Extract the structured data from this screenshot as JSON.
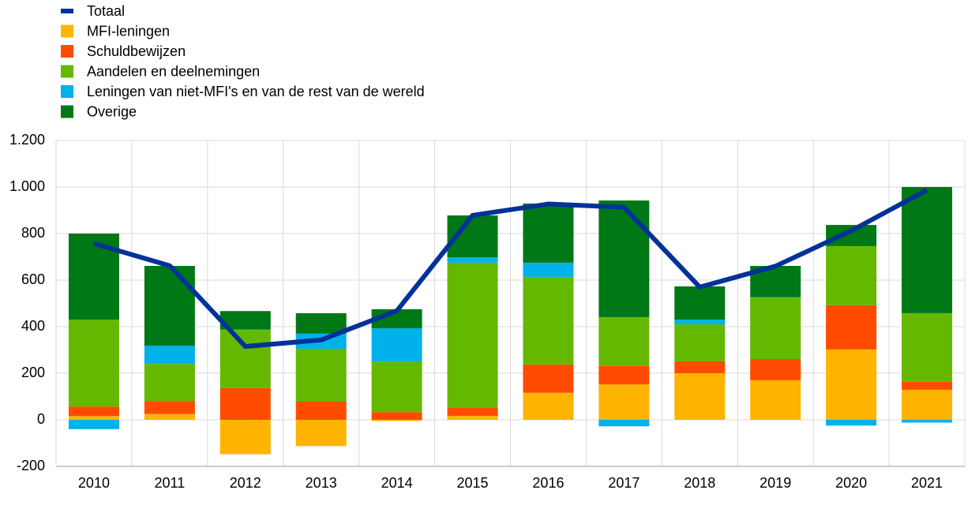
{
  "chart_data": {
    "type": "bar",
    "stacked": true,
    "categories": [
      "2010",
      "2011",
      "2012",
      "2013",
      "2014",
      "2015",
      "2016",
      "2017",
      "2018",
      "2019",
      "2020",
      "2021"
    ],
    "series": [
      {
        "name": "Totaal",
        "type": "line",
        "color": "#003299",
        "values": [
          757,
          662,
          315,
          343,
          468,
          878,
          927,
          913,
          570,
          660,
          812,
          987
        ]
      },
      {
        "name": "MFI-leningen",
        "color": "#ffb400",
        "values": [
          16,
          25,
          -148,
          -113,
          -5,
          17,
          116,
          152,
          200,
          170,
          302,
          129
        ]
      },
      {
        "name": "Schuldbewijzen",
        "color": "#ff4b00",
        "values": [
          41,
          56,
          136,
          78,
          33,
          34,
          121,
          79,
          51,
          91,
          190,
          34
        ]
      },
      {
        "name": "Aandelen en deelnemingen",
        "color": "#65b800",
        "values": [
          373,
          159,
          250,
          227,
          218,
          624,
          377,
          210,
          159,
          264,
          254,
          295
        ]
      },
      {
        "name": "Leningen van niet-MFI's en van de rest van de wereld",
        "color": "#00b1ea",
        "values": [
          -40,
          78,
          2,
          65,
          142,
          23,
          61,
          -28,
          20,
          2,
          -25,
          -12
        ]
      },
      {
        "name": "Overige",
        "color": "#007816",
        "values": [
          370,
          343,
          79,
          88,
          82,
          180,
          254,
          501,
          143,
          134,
          91,
          542
        ]
      }
    ],
    "ylim": [
      -200,
      1200
    ],
    "yticks": [
      -200,
      0,
      200,
      400,
      600,
      800,
      {
        "value": 1000,
        "label": "1.000"
      },
      {
        "value": 1200,
        "label": "1.200"
      }
    ],
    "grid": true,
    "legend": "top-left"
  }
}
